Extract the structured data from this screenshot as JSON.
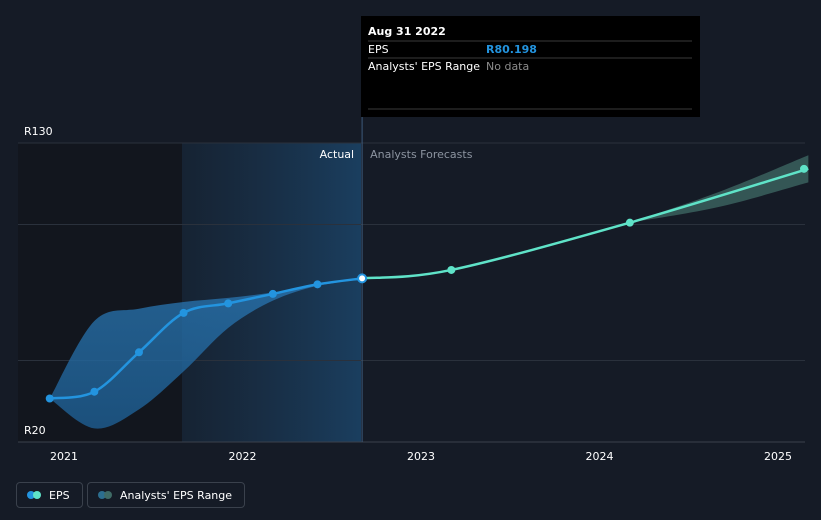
{
  "chart_data": {
    "type": "line",
    "currency": "R",
    "y_ticks": [
      {
        "value": 130,
        "label": "R130"
      },
      {
        "value": 20,
        "label": "R20"
      }
    ],
    "ylim": [
      20,
      130
    ],
    "x_ticks": [
      {
        "value": 2021.0,
        "label": "2021"
      },
      {
        "value": 2022.0,
        "label": "2022"
      },
      {
        "value": 2023.0,
        "label": "2023"
      },
      {
        "value": 2024.0,
        "label": "2024"
      },
      {
        "value": 2025.0,
        "label": "2025"
      }
    ],
    "xlim": [
      2020.75,
      2025.17
    ],
    "gridlines": [
      130,
      100,
      50
    ],
    "actual_label": "Actual",
    "forecast_label": "Analysts Forecasts",
    "series": [
      {
        "name": "EPS",
        "color": "#2394df",
        "points": [
          {
            "x": 2020.92,
            "y": 36.0
          },
          {
            "x": 2021.17,
            "y": 38.5
          },
          {
            "x": 2021.42,
            "y": 53.0
          },
          {
            "x": 2021.67,
            "y": 67.5
          },
          {
            "x": 2021.92,
            "y": 71.0
          },
          {
            "x": 2022.17,
            "y": 74.5
          },
          {
            "x": 2022.42,
            "y": 78.0
          },
          {
            "x": 2022.67,
            "y": 80.198
          }
        ]
      },
      {
        "name": "EPS Forecast",
        "color": "#5fe3c8",
        "points": [
          {
            "x": 2022.67,
            "y": 80.198
          },
          {
            "x": 2023.17,
            "y": 83.3
          },
          {
            "x": 2024.17,
            "y": 100.7
          },
          {
            "x": 2025.17,
            "y": 120.5
          }
        ]
      }
    ],
    "actual_range": {
      "x": [
        2020.92,
        2021.17,
        2021.42,
        2021.67,
        2021.92,
        2022.17,
        2022.42,
        2022.67
      ],
      "upper": [
        36.0,
        64.5,
        69.0,
        71.5,
        73.0,
        75.0,
        77.5,
        80.198
      ],
      "lower": [
        36.0,
        25.0,
        32.0,
        46.0,
        62.0,
        72.0,
        77.5,
        80.198
      ]
    },
    "forecast_range": {
      "x": [
        2024.17,
        2024.67,
        2025.17
      ],
      "upper": [
        100.7,
        112.0,
        125.5
      ],
      "lower": [
        100.7,
        106.5,
        115.5
      ]
    }
  },
  "tooltip": {
    "date": "Aug 31 2022",
    "rows": [
      {
        "label": "EPS",
        "value": "R80.198",
        "no_data": false
      },
      {
        "label": "Analysts' EPS Range",
        "value": "No data",
        "no_data": true
      }
    ]
  },
  "legend": [
    {
      "label": "EPS",
      "colors": [
        "#2394df",
        "#5fe3c8"
      ]
    },
    {
      "label": "Analysts' EPS Range",
      "colors": [
        "#2c6e8f",
        "#3f6b66"
      ]
    }
  ],
  "colors": {
    "background": "#151b26",
    "eps_actual": "#2394df",
    "eps_forecast": "#5fe3c8",
    "range_actual": "#1f5f8f",
    "range_forecast": "#3f6b66",
    "tooltip_bg": "#000000"
  }
}
